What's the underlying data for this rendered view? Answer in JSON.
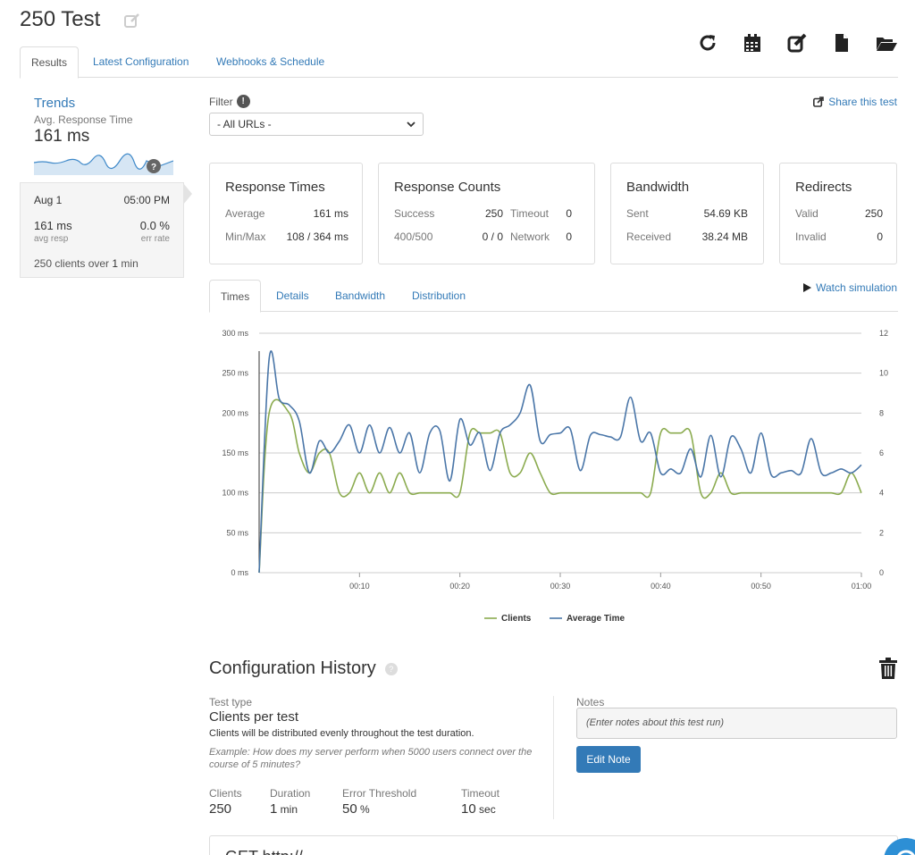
{
  "header": {
    "title": "250 Test",
    "toolbar": [
      "refresh-icon",
      "calendar-icon",
      "edit-icon",
      "file-icon",
      "folder-open-icon"
    ]
  },
  "tabs": [
    {
      "label": "Results",
      "active": true
    },
    {
      "label": "Latest Configuration",
      "active": false
    },
    {
      "label": "Webhooks & Schedule",
      "active": false
    }
  ],
  "trends": {
    "title": "Trends",
    "subtitle": "Avg. Response Time",
    "value": "161 ms",
    "help": "?",
    "date": "Aug 1",
    "time": "05:00 PM",
    "avg_resp_value": "161 ms",
    "avg_resp_label": "avg resp",
    "err_rate_value": "0.0 %",
    "err_rate_label": "err rate",
    "clients_prefix": "250 clients over ",
    "clients_duration": "1",
    "clients_suffix": " min"
  },
  "filter": {
    "label": "Filter",
    "info": "!",
    "selected": "- All URLs -"
  },
  "share_label": "Share this test",
  "cards": {
    "response_times": {
      "title": "Response Times",
      "average_label": "Average",
      "average_value": "161 ms",
      "minmax_label": "Min/Max",
      "minmax_value": "108 / 364 ms"
    },
    "response_counts": {
      "title": "Response Counts",
      "success_label": "Success",
      "success_value": "250",
      "timeout_label": "Timeout",
      "timeout_value": "0",
      "e400_label": "400/500",
      "e400_value": "0 / 0",
      "network_label": "Network",
      "network_value": "0"
    },
    "bandwidth": {
      "title": "Bandwidth",
      "sent_label": "Sent",
      "sent_value": "54.69 KB",
      "received_label": "Received",
      "received_value": "38.24 MB"
    },
    "redirects": {
      "title": "Redirects",
      "valid_label": "Valid",
      "valid_value": "250",
      "invalid_label": "Invalid",
      "invalid_value": "0"
    }
  },
  "chart_tabs": [
    {
      "label": "Times",
      "active": true
    },
    {
      "label": "Details",
      "active": false
    },
    {
      "label": "Bandwidth",
      "active": false
    },
    {
      "label": "Distribution",
      "active": false
    }
  ],
  "watch_label": "Watch simulation",
  "chart_data": {
    "type": "line",
    "x_ticks": [
      "00:10",
      "00:20",
      "00:30",
      "00:40",
      "00:50",
      "01:00"
    ],
    "x_range": [
      0,
      60
    ],
    "y_left_ticks": [
      "0 ms",
      "50 ms",
      "100 ms",
      "150 ms",
      "200 ms",
      "250 ms",
      "300 ms"
    ],
    "y_left_range": [
      0,
      300
    ],
    "y_right_ticks": [
      "0",
      "2",
      "4",
      "6",
      "8",
      "10",
      "12"
    ],
    "y_right_range": [
      0,
      12
    ],
    "grid": true,
    "legend_position": "bottom",
    "series": [
      {
        "name": "Clients",
        "axis": "right",
        "color": "#8bab4f",
        "x": [
          0,
          1,
          3,
          4,
          5,
          6,
          7,
          8,
          9,
          10,
          11,
          12,
          13,
          14,
          15,
          16,
          17,
          18,
          19,
          20,
          21,
          22,
          23,
          24,
          25,
          26,
          27,
          28,
          29,
          30,
          31,
          32,
          33,
          34,
          35,
          36,
          37,
          38,
          39,
          40,
          41,
          42,
          43,
          44,
          45,
          46,
          47,
          48,
          49,
          50,
          51,
          52,
          53,
          54,
          55,
          56,
          57,
          58,
          59,
          60
        ],
        "values": [
          0,
          8,
          8,
          6,
          5,
          6,
          6,
          4,
          4,
          5,
          4,
          5,
          4,
          5,
          4,
          4,
          4,
          4,
          4,
          4,
          7,
          7,
          7,
          7,
          5,
          5,
          6,
          5,
          4,
          4,
          4,
          4,
          4,
          4,
          4,
          4,
          4,
          4,
          4,
          7,
          7,
          7,
          7,
          4,
          4,
          5,
          4,
          4,
          4,
          4,
          4,
          4,
          4,
          4,
          4,
          4,
          4,
          4,
          5,
          4
        ]
      },
      {
        "name": "Average Time",
        "axis": "left",
        "color": "#4a76a8",
        "x": [
          0,
          1,
          2,
          3,
          4,
          5,
          6,
          7,
          8,
          9,
          10,
          11,
          12,
          13,
          14,
          15,
          16,
          17,
          18,
          19,
          20,
          21,
          22,
          23,
          24,
          25,
          26,
          27,
          28,
          29,
          30,
          31,
          32,
          33,
          34,
          35,
          36,
          37,
          38,
          39,
          40,
          41,
          42,
          43,
          44,
          45,
          46,
          47,
          48,
          49,
          50,
          51,
          52,
          53,
          54,
          55,
          56,
          57,
          58,
          59,
          60
        ],
        "values": [
          0,
          268,
          218,
          210,
          190,
          125,
          165,
          150,
          165,
          185,
          150,
          185,
          150,
          182,
          150,
          175,
          125,
          175,
          178,
          115,
          192,
          160,
          175,
          128,
          175,
          185,
          200,
          235,
          165,
          173,
          175,
          180,
          128,
          172,
          173,
          170,
          170,
          220,
          165,
          175,
          125,
          130,
          125,
          155,
          120,
          172,
          120,
          170,
          155,
          125,
          175,
          123,
          125,
          128,
          125,
          168,
          125,
          125,
          130,
          125,
          135
        ]
      }
    ]
  },
  "config": {
    "title": "Configuration History",
    "help": "?",
    "test_type_label": "Test type",
    "test_type_value": "Clients per test",
    "test_type_desc": "Clients will be distributed evenly throughout the test duration.",
    "example": "Example: How does my server perform when 5000 users connect over the course of 5 minutes?",
    "clients_label": "Clients",
    "clients_value": "250",
    "duration_label": "Duration",
    "duration_value": "1",
    "duration_unit": " min",
    "error_label": "Error Threshold",
    "error_value": "50",
    "error_unit": " %",
    "timeout_label": "Timeout",
    "timeout_value": "10",
    "timeout_unit": " sec",
    "notes_label": "Notes",
    "notes_placeholder": "(Enter notes about this test run)",
    "edit_note_label": "Edit Note"
  },
  "bottom_panel_title": "GET http://..."
}
